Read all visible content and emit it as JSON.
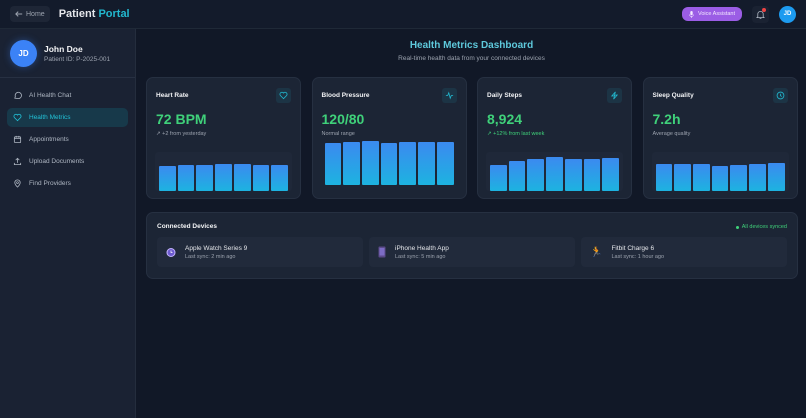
{
  "header": {
    "home_label": "Home",
    "title_a": "Patient",
    "title_b": "Portal",
    "voice_label": "Voice Assistant",
    "avatar": "JD"
  },
  "profile": {
    "initials": "JD",
    "name": "John Doe",
    "patient_id": "Patient ID: P-2025-001"
  },
  "nav": [
    {
      "label": "AI Health Chat",
      "icon": "chat-icon"
    },
    {
      "label": "Health Metrics",
      "icon": "heart-icon",
      "active": true
    },
    {
      "label": "Appointments",
      "icon": "calendar-icon"
    },
    {
      "label": "Upload Documents",
      "icon": "upload-icon"
    },
    {
      "label": "Find Providers",
      "icon": "location-pin-icon"
    }
  ],
  "dashboard": {
    "title": "Health Metrics Dashboard",
    "subtitle": "Real-time health data from your connected devices"
  },
  "cards": [
    {
      "title": "Heart Rate",
      "value": "72 BPM",
      "note": "↗ +2 from yesterday",
      "icon": "heart-icon",
      "bars": [
        63,
        66,
        67,
        69,
        68,
        66,
        67
      ]
    },
    {
      "title": "Blood Pressure",
      "value": "120/80",
      "note": "Normal range",
      "icon": "activity-icon",
      "bars": [
        94,
        95,
        98,
        94,
        95,
        96,
        95
      ]
    },
    {
      "title": "Daily Steps",
      "value": "8,924",
      "note": "↗ +12% from last week",
      "icon": "lightning-icon",
      "bars": [
        66,
        76,
        83,
        86,
        81,
        83,
        84
      ]
    },
    {
      "title": "Sleep Quality",
      "value": "7.2h",
      "note": "Average quality",
      "icon": "clock-icon",
      "bars": [
        68,
        70,
        69,
        65,
        67,
        70,
        71
      ]
    }
  ],
  "devices": {
    "title": "Connected Devices",
    "status": "All devices synced",
    "items": [
      {
        "name": "Apple Watch Series 9",
        "sync": "Last sync: 2 min ago",
        "icon": "watch-icon"
      },
      {
        "name": "iPhone Health App",
        "sync": "Last sync: 5 min ago",
        "icon": "phone-icon"
      },
      {
        "name": "Fitbit Charge 6",
        "sync": "Last sync: 1 hour ago",
        "icon": "runner-icon"
      }
    ]
  },
  "colors": {
    "accent": "#22b8cf",
    "value_green": "#3fd17a",
    "voice_purple": "#9b5de5"
  }
}
